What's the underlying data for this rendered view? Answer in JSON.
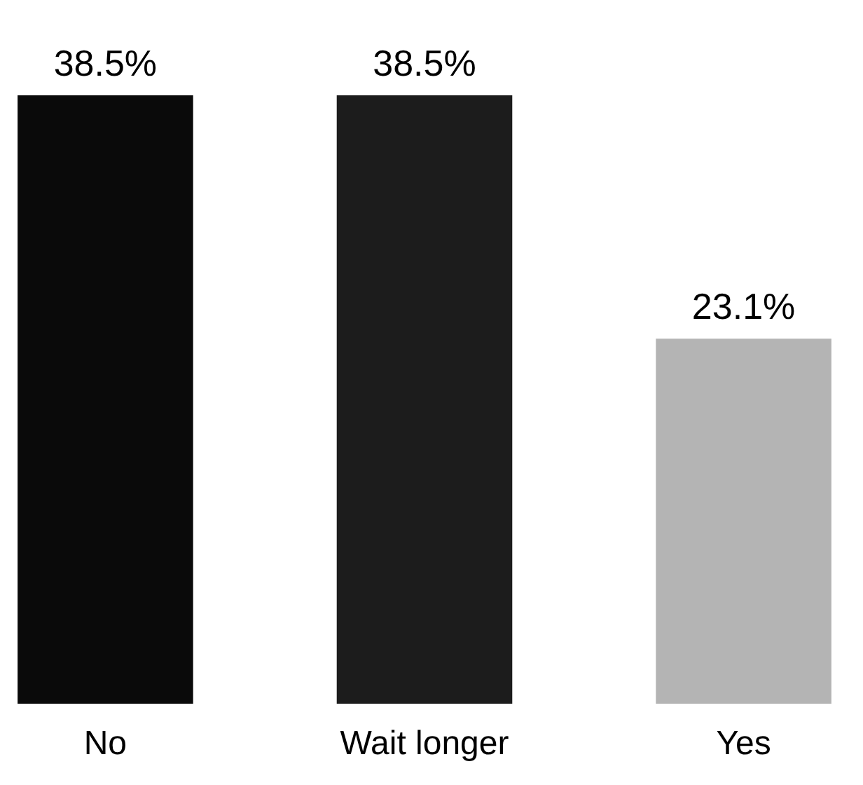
{
  "chart_data": {
    "type": "bar",
    "categories": [
      "No",
      "Wait longer",
      "Yes"
    ],
    "values": [
      38.5,
      38.5,
      23.1
    ],
    "colors": [
      "#0a0a0a",
      "#1c1c1c",
      "#b4b4b4"
    ],
    "value_labels": [
      "38.5%",
      "38.5%",
      "23.1%"
    ]
  }
}
